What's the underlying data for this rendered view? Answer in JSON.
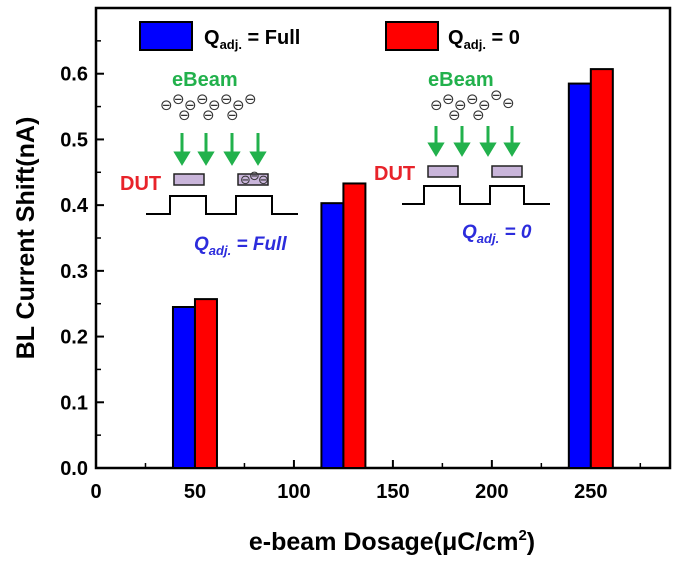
{
  "chart_data": {
    "type": "bar",
    "x_values": [
      50,
      125,
      250
    ],
    "series": [
      {
        "name": "Q_adj. = Full",
        "values": [
          0.245,
          0.403,
          0.585
        ]
      },
      {
        "name": "Q_adj. = 0",
        "values": [
          0.257,
          0.433,
          0.607
        ]
      }
    ],
    "xlabel": "e-beam Dosage(μC/cm²)",
    "ylabel": "BL Current Shift(nA)",
    "xlim": [
      0,
      290
    ],
    "ylim": [
      0,
      0.7
    ],
    "xticks": [
      0,
      50,
      100,
      150,
      200,
      250
    ],
    "yticks": [
      0.0,
      0.1,
      0.2,
      0.3,
      0.4,
      0.5,
      0.6
    ],
    "xtick_labels": [
      "0",
      "50",
      "100",
      "150",
      "200",
      "250"
    ],
    "ytick_labels": [
      "0.0",
      "0.1",
      "0.2",
      "0.3",
      "0.4",
      "0.5",
      "0.6"
    ],
    "legend_position": "top",
    "grid": false
  },
  "legend": [
    {
      "sym": "Q",
      "sub": "adj.",
      "rest": " = Full",
      "color": "#0000ff"
    },
    {
      "sym": "Q",
      "sub": "adj.",
      "rest": " = 0",
      "color": "#ff0000"
    }
  ],
  "axis_titles": {
    "x_main": "e-beam Dosage(μC/cm",
    "x_sup": "2",
    "x_end": ")",
    "y": "BL Current Shift(nA)"
  },
  "insets": [
    {
      "ebeam_label": "eBeam",
      "dut_label": "DUT",
      "q_sym": "Q",
      "q_sub": "adj.",
      "q_rest": " = Full",
      "electron_glyph": "⊖"
    },
    {
      "ebeam_label": "eBeam",
      "dut_label": "DUT",
      "q_sym": "Q",
      "q_sub": "adj.",
      "q_rest": " = 0",
      "electron_glyph": "⊖"
    }
  ],
  "colors": {
    "series_full": "#0000ff",
    "series_zero": "#ff0000",
    "ebeam": "#22b14c",
    "dut": "#e8232a",
    "q_label": "#2c2cdc",
    "gate": "#c9b5da"
  }
}
